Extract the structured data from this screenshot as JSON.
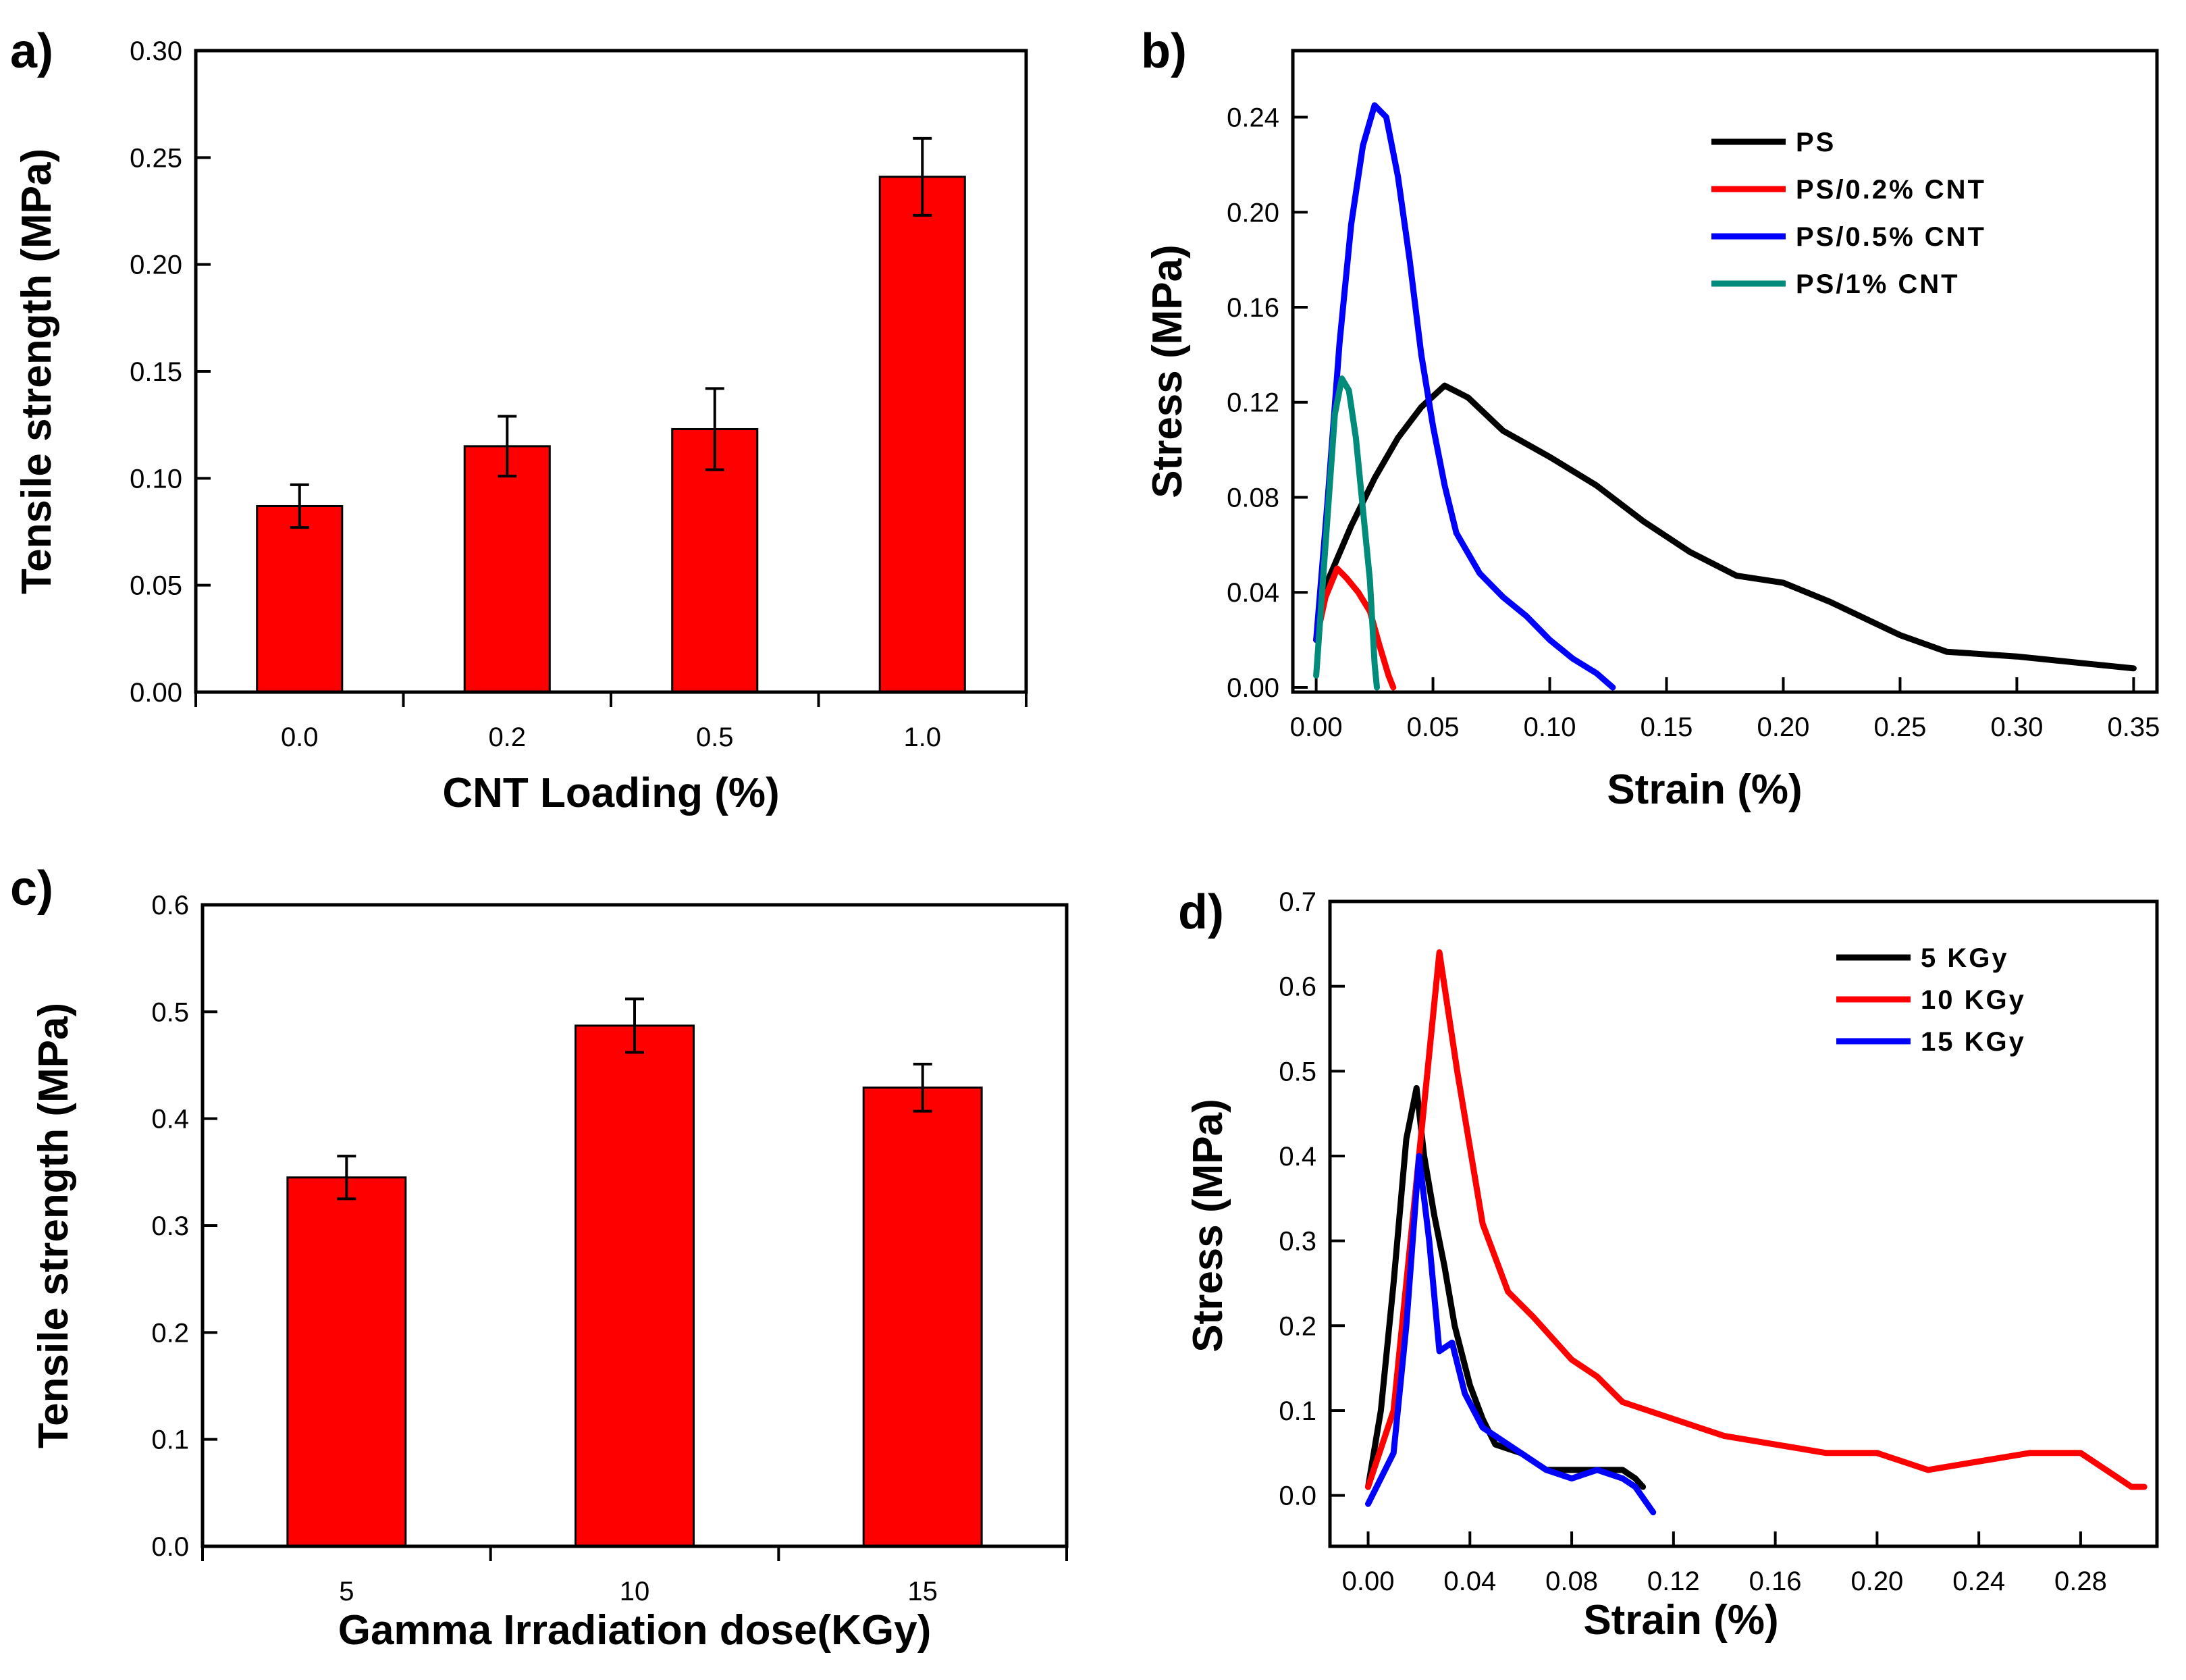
{
  "chart_data": [
    {
      "panel": "a)",
      "type": "bar",
      "xlabel": "CNT Loading (%)",
      "ylabel": "Tensile strength (MPa)",
      "categories": [
        "0.0",
        "0.2",
        "0.5",
        "1.0"
      ],
      "values": [
        0.087,
        0.115,
        0.123,
        0.241
      ],
      "errors": [
        0.01,
        0.014,
        0.019,
        0.018
      ],
      "ylim": [
        0,
        0.3
      ],
      "yticks": [
        "0.00",
        "0.05",
        "0.10",
        "0.15",
        "0.20",
        "0.25",
        "0.30"
      ],
      "bar_color": "#ff0000"
    },
    {
      "panel": "b)",
      "type": "line",
      "xlabel": "Strain (%)",
      "ylabel": "Stress (MPa)",
      "xlim": [
        -0.01,
        0.36
      ],
      "ylim": [
        -0.002,
        0.268
      ],
      "xticks": [
        "0.00",
        "0.05",
        "0.10",
        "0.15",
        "0.20",
        "0.25",
        "0.30",
        "0.35"
      ],
      "yticks": [
        "0.00",
        "0.04",
        "0.08",
        "0.12",
        "0.16",
        "0.20",
        "0.24"
      ],
      "legend_position": "top-right",
      "series": [
        {
          "name": "PS",
          "color": "#000000",
          "points": [
            [
              0,
              0.02
            ],
            [
              0.005,
              0.045
            ],
            [
              0.015,
              0.068
            ],
            [
              0.025,
              0.088
            ],
            [
              0.035,
              0.105
            ],
            [
              0.045,
              0.118
            ],
            [
              0.055,
              0.127
            ],
            [
              0.065,
              0.122
            ],
            [
              0.08,
              0.108
            ],
            [
              0.1,
              0.097
            ],
            [
              0.12,
              0.085
            ],
            [
              0.14,
              0.07
            ],
            [
              0.16,
              0.057
            ],
            [
              0.18,
              0.047
            ],
            [
              0.2,
              0.044
            ],
            [
              0.22,
              0.036
            ],
            [
              0.25,
              0.022
            ],
            [
              0.27,
              0.015
            ],
            [
              0.3,
              0.013
            ],
            [
              0.33,
              0.01
            ],
            [
              0.35,
              0.008
            ]
          ]
        },
        {
          "name": "PS/0.2% CNT",
          "color": "#ff0000",
          "points": [
            [
              0,
              0.02
            ],
            [
              0.004,
              0.038
            ],
            [
              0.009,
              0.05
            ],
            [
              0.013,
              0.046
            ],
            [
              0.018,
              0.04
            ],
            [
              0.023,
              0.032
            ],
            [
              0.027,
              0.018
            ],
            [
              0.031,
              0.005
            ],
            [
              0.033,
              0
            ]
          ]
        },
        {
          "name": "PS/0.5% CNT",
          "color": "#0000ff",
          "points": [
            [
              0,
              0.02
            ],
            [
              0.005,
              0.08
            ],
            [
              0.01,
              0.145
            ],
            [
              0.015,
              0.195
            ],
            [
              0.02,
              0.228
            ],
            [
              0.025,
              0.245
            ],
            [
              0.03,
              0.24
            ],
            [
              0.035,
              0.215
            ],
            [
              0.04,
              0.18
            ],
            [
              0.045,
              0.14
            ],
            [
              0.05,
              0.11
            ],
            [
              0.055,
              0.085
            ],
            [
              0.06,
              0.065
            ],
            [
              0.07,
              0.048
            ],
            [
              0.08,
              0.038
            ],
            [
              0.09,
              0.03
            ],
            [
              0.1,
              0.02
            ],
            [
              0.11,
              0.012
            ],
            [
              0.12,
              0.006
            ],
            [
              0.127,
              0
            ]
          ]
        },
        {
          "name": "PS/1% CNT",
          "color": "#008b7a",
          "points": [
            [
              0,
              0.005
            ],
            [
              0.004,
              0.06
            ],
            [
              0.008,
              0.115
            ],
            [
              0.011,
              0.13
            ],
            [
              0.014,
              0.125
            ],
            [
              0.017,
              0.105
            ],
            [
              0.02,
              0.075
            ],
            [
              0.023,
              0.045
            ],
            [
              0.025,
              0.01
            ],
            [
              0.026,
              0
            ]
          ]
        }
      ]
    },
    {
      "panel": "c)",
      "type": "bar",
      "xlabel": "Gamma Irradiation dose(KGy)",
      "ylabel": "Tensile strength (MPa)",
      "categories": [
        "5",
        "10",
        "15"
      ],
      "values": [
        0.345,
        0.487,
        0.429
      ],
      "errors": [
        0.02,
        0.025,
        0.022
      ],
      "ylim": [
        0,
        0.6
      ],
      "yticks": [
        "0.0",
        "0.1",
        "0.2",
        "0.3",
        "0.4",
        "0.5",
        "0.6"
      ],
      "bar_color": "#ff0000"
    },
    {
      "panel": "d)",
      "type": "line",
      "xlabel": "Strain (%)",
      "ylabel": "Stress (MPa)",
      "xlim": [
        -0.015,
        0.31
      ],
      "ylim": [
        -0.06,
        0.7
      ],
      "xticks": [
        "0.00",
        "0.04",
        "0.08",
        "0.12",
        "0.16",
        "0.20",
        "0.24",
        "0.28"
      ],
      "yticks": [
        "0.0",
        "0.1",
        "0.2",
        "0.3",
        "0.4",
        "0.5",
        "0.6",
        "0.7"
      ],
      "legend_position": "top-right",
      "series": [
        {
          "name": "5 KGy",
          "color": "#000000",
          "points": [
            [
              0,
              0.01
            ],
            [
              0.005,
              0.1
            ],
            [
              0.01,
              0.25
            ],
            [
              0.015,
              0.42
            ],
            [
              0.019,
              0.48
            ],
            [
              0.022,
              0.4
            ],
            [
              0.026,
              0.33
            ],
            [
              0.03,
              0.27
            ],
            [
              0.034,
              0.2
            ],
            [
              0.04,
              0.13
            ],
            [
              0.045,
              0.09
            ],
            [
              0.05,
              0.06
            ],
            [
              0.06,
              0.05
            ],
            [
              0.07,
              0.03
            ],
            [
              0.08,
              0.03
            ],
            [
              0.09,
              0.03
            ],
            [
              0.1,
              0.03
            ],
            [
              0.105,
              0.02
            ],
            [
              0.108,
              0.01
            ]
          ]
        },
        {
          "name": "10 KGy",
          "color": "#ff0000",
          "points": [
            [
              0,
              0.01
            ],
            [
              0.01,
              0.1
            ],
            [
              0.02,
              0.4
            ],
            [
              0.028,
              0.64
            ],
            [
              0.035,
              0.5
            ],
            [
              0.045,
              0.32
            ],
            [
              0.055,
              0.24
            ],
            [
              0.065,
              0.21
            ],
            [
              0.08,
              0.16
            ],
            [
              0.09,
              0.14
            ],
            [
              0.1,
              0.11
            ],
            [
              0.12,
              0.09
            ],
            [
              0.14,
              0.07
            ],
            [
              0.16,
              0.06
            ],
            [
              0.18,
              0.05
            ],
            [
              0.2,
              0.05
            ],
            [
              0.22,
              0.03
            ],
            [
              0.24,
              0.04
            ],
            [
              0.26,
              0.05
            ],
            [
              0.28,
              0.05
            ],
            [
              0.29,
              0.03
            ],
            [
              0.3,
              0.01
            ],
            [
              0.305,
              0.01
            ]
          ]
        },
        {
          "name": "15 KGy",
          "color": "#0000ff",
          "points": [
            [
              0,
              -0.01
            ],
            [
              0.01,
              0.05
            ],
            [
              0.015,
              0.2
            ],
            [
              0.02,
              0.4
            ],
            [
              0.024,
              0.3
            ],
            [
              0.028,
              0.17
            ],
            [
              0.033,
              0.18
            ],
            [
              0.038,
              0.12
            ],
            [
              0.045,
              0.08
            ],
            [
              0.05,
              0.07
            ],
            [
              0.06,
              0.05
            ],
            [
              0.07,
              0.03
            ],
            [
              0.08,
              0.02
            ],
            [
              0.09,
              0.03
            ],
            [
              0.1,
              0.02
            ],
            [
              0.105,
              0.01
            ],
            [
              0.112,
              -0.02
            ]
          ]
        }
      ]
    }
  ]
}
